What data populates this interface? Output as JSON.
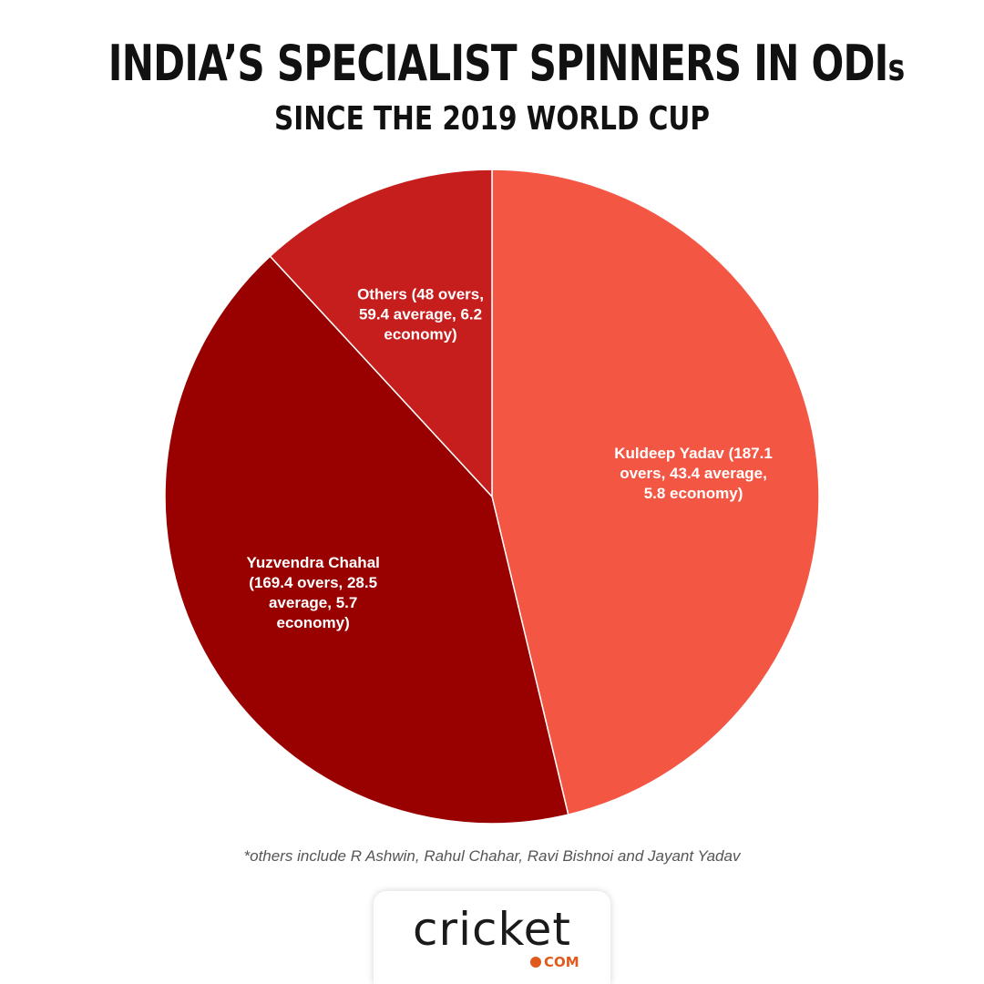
{
  "header": {
    "title_main": "INDIA’S SPECIALIST SPINNERS IN ODI",
    "title_suffix": "s",
    "subtitle": "SINCE THE 2019 WORLD CUP"
  },
  "chart_data": {
    "type": "pie",
    "title": "INDIA’S SPECIALIST SPINNERS IN ODIs",
    "subtitle": "SINCE THE 2019 WORLD CUP",
    "slices": [
      {
        "name": "Kuldeep Yadav",
        "value": 187.1,
        "color": "#f45644",
        "label_lines": [
          "Kuldeep Yadav (187.1",
          "overs, 43.4 average,",
          "5.8 economy)"
        ]
      },
      {
        "name": "Yuzvendra Chahal",
        "value": 169.4,
        "color": "#990000",
        "label_lines": [
          "Yuzvendra Chahal",
          "(169.4 overs, 28.5",
          "average, 5.7",
          "economy)"
        ]
      },
      {
        "name": "Others",
        "value": 48,
        "color": "#c61d1d",
        "label_lines": [
          "Others (48 overs,",
          "59.4 average, 6.2",
          "economy)"
        ]
      }
    ],
    "legend": "none",
    "data_labels": "inside"
  },
  "footnote": "*others include R Ashwin, Rahul Chahar, Ravi Bishnoi and Jayant Yadav",
  "logo": {
    "wordmark": "cricket",
    "suffix": "COM",
    "accent": "#e05a1c"
  }
}
